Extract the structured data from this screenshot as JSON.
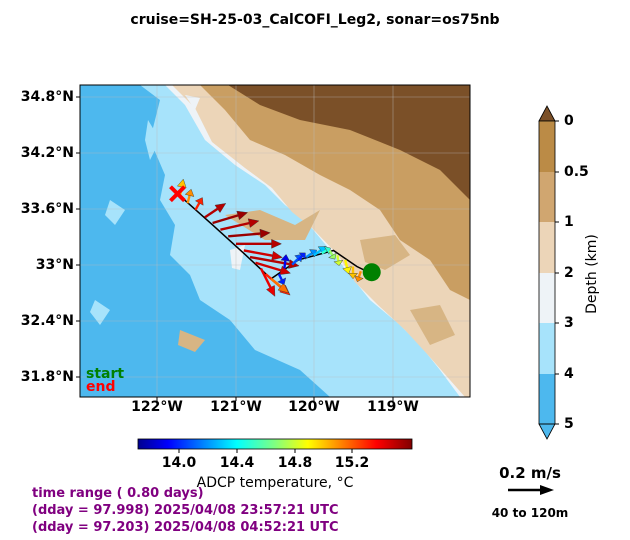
{
  "title": "cruise=SH-25-03_CalCOFI_Leg2,   sonar=os75nb",
  "map": {
    "lat_ticks": [
      "34.8°N",
      "34.2°N",
      "33.6°N",
      "33°N",
      "32.4°N",
      "31.8°N"
    ],
    "lon_ticks": [
      "122°W",
      "121°W",
      "120°W",
      "119°W"
    ],
    "start_label": "start",
    "end_label": "end",
    "colors": {
      "ocean_deep": "#4db8ee",
      "ocean_shelf": "#a7e3fb",
      "land_low": "#ecd5b8",
      "land_mid": "#c99e62",
      "land_high": "#7b5028",
      "track": "#000000",
      "start_marker": "#008000",
      "end_marker": "#ff0000"
    }
  },
  "depth_colorbar": {
    "label": "Depth (km)",
    "ticks": [
      "0",
      "0.5",
      "1",
      "2",
      "3",
      "4",
      "5"
    ],
    "colors": [
      "#bb8b46",
      "#d0a670",
      "#ecd5b8",
      "#eef3f7",
      "#a7e3fb",
      "#4db8ee"
    ]
  },
  "temp_colorbar": {
    "label": "ADCP temperature, °C",
    "ticks": [
      "14.0",
      "14.4",
      "14.8",
      "15.2"
    ],
    "range": [
      13.7,
      15.6
    ]
  },
  "scale": {
    "speed_label": "0.2 m/s",
    "range_label": "40 to 120m"
  },
  "info": {
    "line1": "time range ( 0.80 days)",
    "line2": "(dday = 97.998) 2025/04/08 23:57:21 UTC",
    "line3": "(dday = 97.203) 2025/04/08 04:52:21 UTC"
  },
  "chart_data": {
    "type": "vector",
    "extent": {
      "lon": [
        -123.0,
        -118.0
      ],
      "lat": [
        31.6,
        34.9
      ]
    },
    "track": [
      [
        -121.75,
        33.75
      ],
      [
        -121.3,
        33.42
      ],
      [
        -120.9,
        33.12
      ],
      [
        -120.55,
        32.85
      ],
      [
        -120.2,
        33.05
      ],
      [
        -119.75,
        33.15
      ],
      [
        -119.45,
        32.98
      ],
      [
        -119.3,
        32.92
      ]
    ],
    "start": {
      "lon": -119.26,
      "lat": 32.92
    },
    "end": {
      "lon": -121.75,
      "lat": 33.75
    },
    "vectors": [
      {
        "lon": -121.72,
        "lat": 33.72,
        "u": 0.02,
        "v": 0.1,
        "t": 15.0
      },
      {
        "lon": -121.62,
        "lat": 33.65,
        "u": 0.02,
        "v": 0.08,
        "t": 15.1
      },
      {
        "lon": -121.52,
        "lat": 33.58,
        "u": 0.04,
        "v": 0.07,
        "t": 15.3
      },
      {
        "lon": -121.4,
        "lat": 33.5,
        "u": 0.12,
        "v": 0.08,
        "t": 15.5
      },
      {
        "lon": -121.3,
        "lat": 33.44,
        "u": 0.2,
        "v": 0.06,
        "t": 15.55
      },
      {
        "lon": -121.2,
        "lat": 33.37,
        "u": 0.22,
        "v": 0.05,
        "t": 15.5
      },
      {
        "lon": -121.1,
        "lat": 33.3,
        "u": 0.24,
        "v": 0.02,
        "t": 15.55
      },
      {
        "lon": -121.0,
        "lat": 33.22,
        "u": 0.26,
        "v": 0.0,
        "t": 15.5
      },
      {
        "lon": -120.9,
        "lat": 33.15,
        "u": 0.22,
        "v": -0.04,
        "t": 15.45
      },
      {
        "lon": -120.82,
        "lat": 33.08,
        "u": 0.28,
        "v": -0.05,
        "t": 15.5
      },
      {
        "lon": -120.75,
        "lat": 33.02,
        "u": 0.2,
        "v": -0.06,
        "t": 15.45
      },
      {
        "lon": -120.68,
        "lat": 32.96,
        "u": 0.08,
        "v": -0.16,
        "t": 15.4
      },
      {
        "lon": -120.62,
        "lat": 32.9,
        "u": 0.14,
        "v": -0.12,
        "t": 15.3
      },
      {
        "lon": -120.55,
        "lat": 32.85,
        "u": 0.1,
        "v": -0.08,
        "t": 15.15
      },
      {
        "lon": -120.45,
        "lat": 32.9,
        "u": 0.03,
        "v": -0.06,
        "t": 14.0
      },
      {
        "lon": -120.38,
        "lat": 32.96,
        "u": 0.01,
        "v": 0.08,
        "t": 13.9
      },
      {
        "lon": -120.28,
        "lat": 33.0,
        "u": 0.06,
        "v": 0.06,
        "t": 14.1
      },
      {
        "lon": -120.2,
        "lat": 33.05,
        "u": 0.04,
        "v": 0.04,
        "t": 14.0
      },
      {
        "lon": -120.1,
        "lat": 33.08,
        "u": 0.06,
        "v": 0.04,
        "t": 14.2
      },
      {
        "lon": -120.0,
        "lat": 33.1,
        "u": 0.07,
        "v": 0.05,
        "t": 14.3
      },
      {
        "lon": -119.9,
        "lat": 33.12,
        "u": 0.05,
        "v": 0.03,
        "t": 14.5
      },
      {
        "lon": -119.8,
        "lat": 33.15,
        "u": 0.03,
        "v": -0.05,
        "t": 14.7
      },
      {
        "lon": -119.7,
        "lat": 33.1,
        "u": 0.01,
        "v": -0.06,
        "t": 14.8
      },
      {
        "lon": -119.6,
        "lat": 33.05,
        "u": 0.02,
        "v": -0.08,
        "t": 14.9
      },
      {
        "lon": -119.5,
        "lat": 32.98,
        "u": 0.0,
        "v": -0.07,
        "t": 15.0
      },
      {
        "lon": -119.4,
        "lat": 32.93,
        "u": -0.02,
        "v": -0.06,
        "t": 15.1
      }
    ]
  }
}
